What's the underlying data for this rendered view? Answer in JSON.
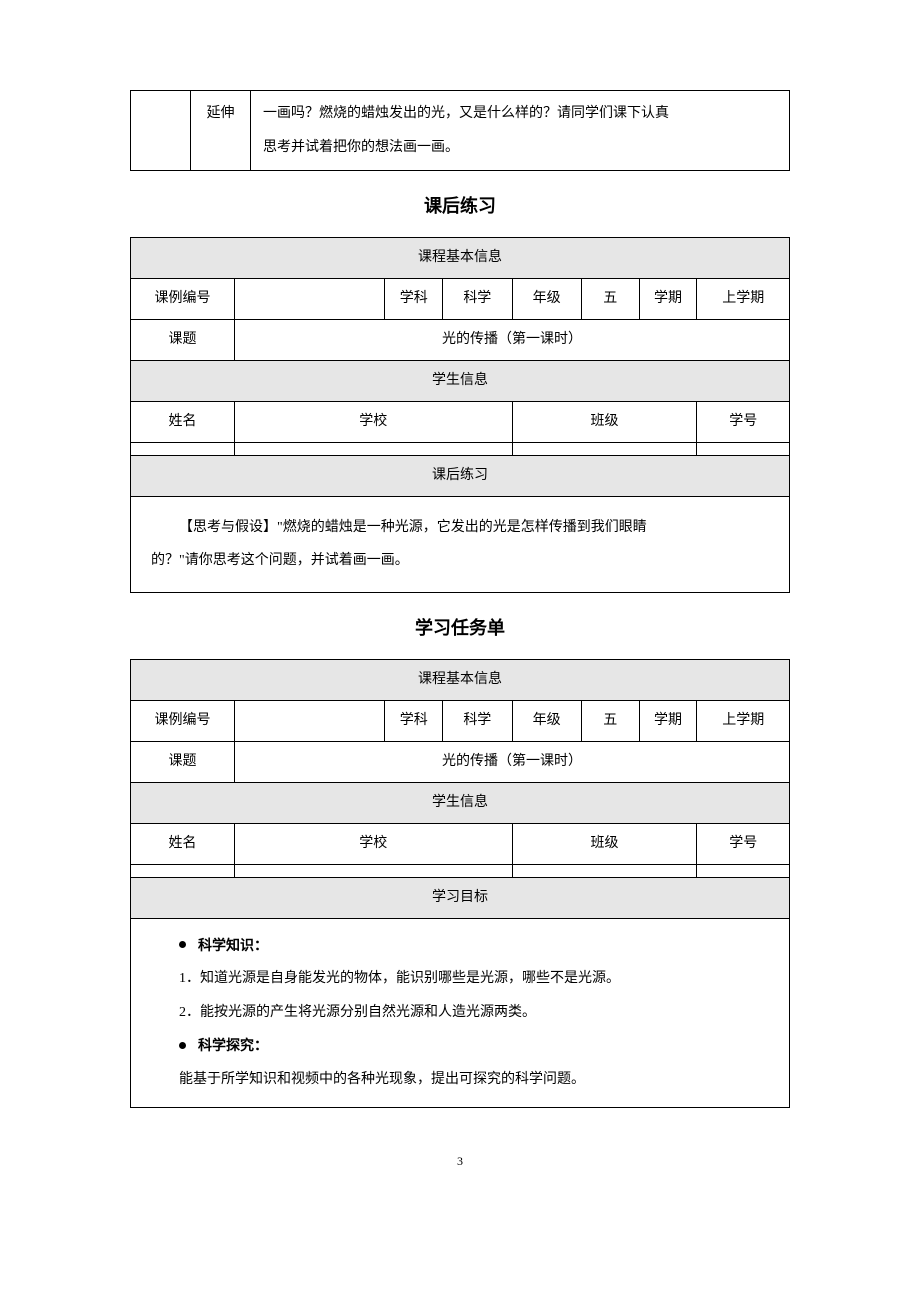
{
  "topFragment": {
    "col2": "延伸",
    "text_line1": "一画吗？燃烧的蜡烛发出的光，又是什么样的？请同学们课下认真",
    "text_line2": "思考并试着把你的想法画一画。"
  },
  "section1": {
    "title": "课后练习",
    "header": "课程基本信息",
    "row1": {
      "codeLabel": "课例编号",
      "codeVal": "",
      "subjectLabel": "学科",
      "subjectVal": "科学",
      "gradeLabel": "年级",
      "gradeVal": "五",
      "termLabel": "学期",
      "termVal": "上学期"
    },
    "row2": {
      "topicLabel": "课题",
      "topicVal": "光的传播（第一课时）"
    },
    "studentHeader": "学生信息",
    "studentRow": {
      "name": "姓名",
      "school": "学校",
      "class": "班级",
      "id": "学号"
    },
    "practiceHeader": "课后练习",
    "practiceText1": "【思考与假设】\"燃烧的蜡烛是一种光源，它发出的光是怎样传播到我们眼睛",
    "practiceText2": "的？\"请你思考这个问题，并试着画一画。"
  },
  "section2": {
    "title": "学习任务单",
    "header": "课程基本信息",
    "row1": {
      "codeLabel": "课例编号",
      "codeVal": "",
      "subjectLabel": "学科",
      "subjectVal": "科学",
      "gradeLabel": "年级",
      "gradeVal": "五",
      "termLabel": "学期",
      "termVal": "上学期"
    },
    "row2": {
      "topicLabel": "课题",
      "topicVal": "光的传播（第一课时）"
    },
    "studentHeader": "学生信息",
    "studentRow": {
      "name": "姓名",
      "school": "学校",
      "class": "班级",
      "id": "学号"
    },
    "goalsHeader": "学习目标",
    "goals": {
      "bullet1": "科学知识：",
      "item1": "1．知道光源是自身能发光的物体，能识别哪些是光源，哪些不是光源。",
      "item2": "2．能按光源的产生将光源分别自然光源和人造光源两类。",
      "bullet2": "科学探究：",
      "item3": "能基于所学知识和视频中的各种光现象，提出可探究的科学问题。"
    }
  },
  "pageNumber": "3",
  "colors": {
    "headerBg": "#e6e6e6",
    "border": "#000000",
    "text": "#000000",
    "pageBg": "#ffffff"
  }
}
